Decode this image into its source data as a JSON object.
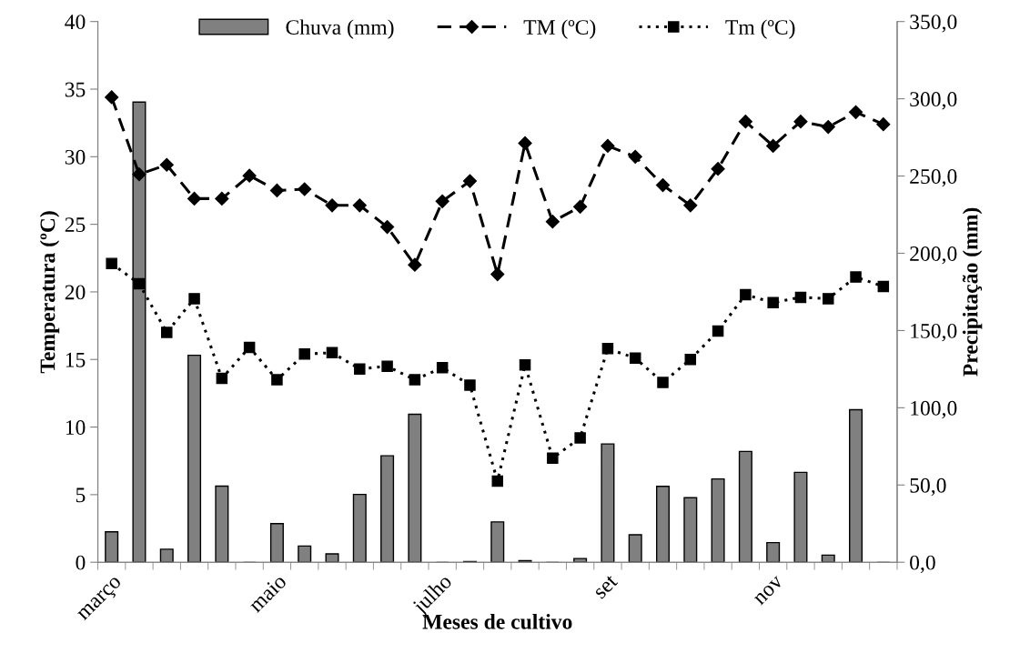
{
  "chart_data": {
    "type": "line",
    "xlabel": "Meses de cultivo",
    "ylabel": "Temperatura (ºC)",
    "y2label": "Precipitação (mm)",
    "categories": [
      "março",
      null,
      null,
      null,
      null,
      null,
      "maio",
      null,
      null,
      null,
      null,
      null,
      "julho",
      null,
      null,
      null,
      null,
      null,
      "set",
      null,
      null,
      null,
      null,
      null,
      "nov",
      null,
      null,
      null,
      null
    ],
    "series": [
      {
        "name": "Chuva (mm)",
        "type": "bar",
        "axis": "y2",
        "color": "#808080",
        "values": [
          19.7,
          297.9,
          8.4,
          134.0,
          49.3,
          0,
          25.0,
          10.5,
          5.4,
          43.9,
          68.9,
          95.8,
          0,
          0.5,
          26.1,
          1.1,
          0,
          2.4,
          76.6,
          17.8,
          49.1,
          41.8,
          53.9,
          71.7,
          12.7,
          58.2,
          4.6,
          98.7,
          0
        ]
      },
      {
        "name": "TM (ºC)",
        "color": "#000000",
        "marker": "diamond",
        "line_style": "dashed",
        "values": [
          34.4,
          28.7,
          29.4,
          26.9,
          26.9,
          28.6,
          27.5,
          27.6,
          26.4,
          26.4,
          24.8,
          22.0,
          26.7,
          28.2,
          21.3,
          31.0,
          25.2,
          26.3,
          30.8,
          30.0,
          27.9,
          26.4,
          29.1,
          32.6,
          30.8,
          32.6,
          32.2,
          33.3,
          32.4
        ]
      },
      {
        "name": "Tm (ºC)",
        "color": "#000000",
        "marker": "square",
        "line_style": "dotted",
        "values": [
          22.1,
          20.6,
          17.0,
          19.5,
          13.6,
          15.9,
          13.5,
          15.4,
          15.5,
          14.3,
          14.5,
          13.5,
          14.4,
          13.1,
          6.0,
          14.6,
          7.7,
          9.2,
          15.8,
          15.1,
          13.3,
          15.0,
          17.1,
          19.8,
          19.2,
          19.6,
          19.5,
          21.1,
          20.4
        ]
      }
    ],
    "ylim": [
      0,
      40
    ],
    "yticks": [
      0,
      5,
      10,
      15,
      20,
      25,
      30,
      35,
      40
    ],
    "y2lim": [
      0,
      350
    ],
    "y2ticks": [
      {
        "value": 0,
        "label": "0,0"
      },
      {
        "value": 50,
        "label": "50,0"
      },
      {
        "value": 100,
        "label": "100,0"
      },
      {
        "value": 150,
        "label": "150,0"
      },
      {
        "value": 200,
        "label": "200,0"
      },
      {
        "value": 250,
        "label": "250,0"
      },
      {
        "value": 300,
        "label": "300,0"
      },
      {
        "value": 350,
        "label": "350,0"
      }
    ],
    "grid": false,
    "legend": "top"
  }
}
